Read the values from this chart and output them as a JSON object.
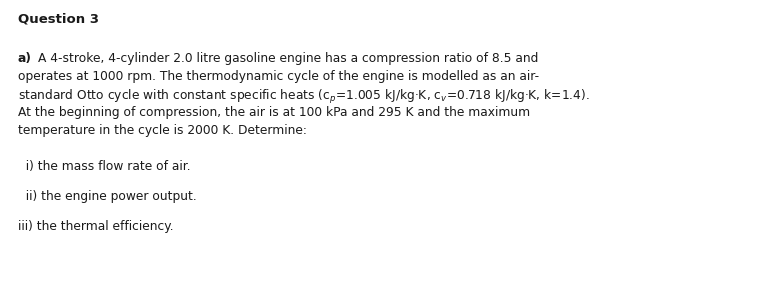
{
  "title": "Question 3",
  "background_color": "#ffffff",
  "text_color": "#1a1a1a",
  "bold_label": "a)",
  "line1_rest": "A 4-stroke, 4-cylinder 2.0 litre gasoline engine has a compression ratio of 8.5 and",
  "line2": "operates at 1000 rpm. The thermodynamic cycle of the engine is modelled as an air-",
  "line3": "standard Otto cycle with constant specific heats (c$_p$=1.005 kJ/kg·K, c$_v$=0.718 kJ/kg·K, k=1.4).",
  "line4": "At the beginning of compression, the air is at 100 kPa and 295 K and the maximum",
  "line5": "temperature in the cycle is 2000 K. Determine:",
  "item_i": "  i) the mass flow rate of air.",
  "item_ii": "  ii) the engine power output.",
  "item_iii": "iii) the thermal efficiency.",
  "font_size_title": 9.5,
  "font_size_body": 8.8,
  "fig_width": 7.75,
  "fig_height": 2.99,
  "dpi": 100
}
